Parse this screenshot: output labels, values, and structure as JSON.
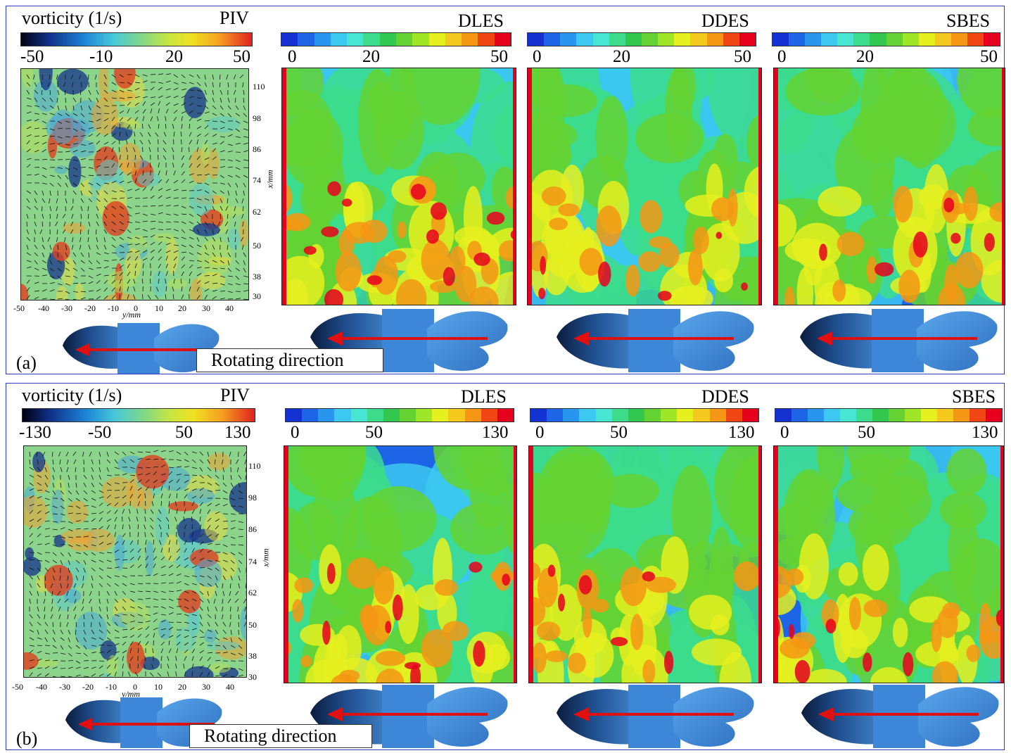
{
  "colors": {
    "panel_border": "#2b3cc7",
    "arrow": "#e01010",
    "cfd_levels": [
      "#1432d2",
      "#1e64e6",
      "#2896ee",
      "#3cc8f0",
      "#46e6d2",
      "#3cdc8c",
      "#32c850",
      "#64d232",
      "#a0e628",
      "#e6f01e",
      "#f5c81e",
      "#f59614",
      "#f04614",
      "#e6001e"
    ]
  },
  "panels": [
    {
      "id": "a",
      "label": "(a)",
      "piv": {
        "colorbar_title": "vorticity (1/s)",
        "method": "PIV",
        "colorbar_ticks": [
          "-50",
          "-10",
          "20",
          "50"
        ],
        "x_ticks": [
          "110",
          "98",
          "86",
          "74",
          "62",
          "50",
          "38",
          "30"
        ],
        "y_ticks": [
          "-50",
          "-40",
          "-30",
          "-20",
          "-10",
          "0",
          "10",
          "20",
          "30",
          "40"
        ],
        "x_axis_label": "x/mm",
        "y_axis_label": "y/mm"
      },
      "cfd": [
        {
          "method": "DLES",
          "ticks": [
            "0",
            "20",
            "50"
          ]
        },
        {
          "method": "DDES",
          "ticks": [
            "0",
            "20",
            "50"
          ]
        },
        {
          "method": "SBES",
          "ticks": [
            "0",
            "20",
            "50"
          ]
        }
      ],
      "rotating_label": "Rotating direction"
    },
    {
      "id": "b",
      "label": "(b)",
      "piv": {
        "colorbar_title": "vorticity (1/s)",
        "method": "PIV",
        "colorbar_ticks": [
          "-130",
          "-50",
          "50",
          "130"
        ],
        "x_ticks": [
          "110",
          "98",
          "86",
          "74",
          "62",
          "50",
          "38",
          "30"
        ],
        "y_ticks": [
          "-50",
          "-40",
          "-30",
          "-20",
          "-10",
          "0",
          "10",
          "20",
          "30",
          "40"
        ],
        "x_axis_label": "x/mm",
        "y_axis_label": "y/mm"
      },
      "cfd": [
        {
          "method": "DLES",
          "ticks": [
            "0",
            "50",
            "130"
          ]
        },
        {
          "method": "DDES",
          "ticks": [
            "0",
            "50",
            "130"
          ]
        },
        {
          "method": "SBES",
          "ticks": [
            "0",
            "50",
            "130"
          ]
        }
      ],
      "rotating_label": "Rotating direction"
    }
  ]
}
